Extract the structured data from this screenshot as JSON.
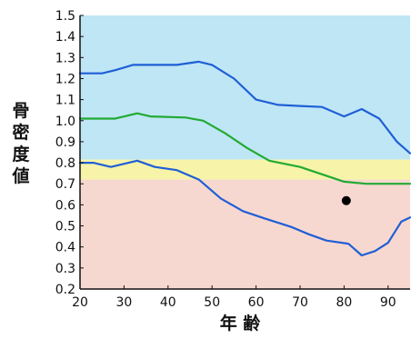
{
  "chart_data": {
    "type": "line",
    "ylabel": "骨密度値",
    "xlabel": "年 齢",
    "xlim": [
      20,
      95
    ],
    "ylim": [
      0.2,
      1.5
    ],
    "x_ticks": [
      20,
      30,
      40,
      50,
      60,
      70,
      80,
      90
    ],
    "y_ticks": [
      0.2,
      0.3,
      0.4,
      0.5,
      0.6,
      0.7,
      0.8,
      0.9,
      1.0,
      1.1,
      1.2,
      1.3,
      1.4,
      1.5
    ],
    "grid": false,
    "legend": "none",
    "bands": [
      {
        "from": 0.815,
        "to": 1.5,
        "color": "#bfe6f5"
      },
      {
        "from": 0.72,
        "to": 0.815,
        "color": "#f7f3a8"
      },
      {
        "from": 0.2,
        "to": 0.72,
        "color": "#f7d8d0"
      }
    ],
    "series": [
      {
        "color": "#1f5fd6",
        "points": [
          [
            20,
            1.225
          ],
          [
            25,
            1.225
          ],
          [
            28,
            1.24
          ],
          [
            32,
            1.265
          ],
          [
            38,
            1.265
          ],
          [
            42,
            1.265
          ],
          [
            47,
            1.28
          ],
          [
            50,
            1.265
          ],
          [
            55,
            1.2
          ],
          [
            60,
            1.1
          ],
          [
            65,
            1.075
          ],
          [
            70,
            1.07
          ],
          [
            75,
            1.065
          ],
          [
            80,
            1.02
          ],
          [
            84,
            1.055
          ],
          [
            88,
            1.01
          ],
          [
            92,
            0.9
          ],
          [
            95,
            0.845
          ]
        ]
      },
      {
        "color": "#22aa33",
        "points": [
          [
            20,
            1.01
          ],
          [
            28,
            1.01
          ],
          [
            33,
            1.035
          ],
          [
            36,
            1.02
          ],
          [
            44,
            1.015
          ],
          [
            48,
            1.0
          ],
          [
            53,
            0.94
          ],
          [
            58,
            0.87
          ],
          [
            63,
            0.81
          ],
          [
            70,
            0.78
          ],
          [
            75,
            0.745
          ],
          [
            80,
            0.71
          ],
          [
            85,
            0.7
          ],
          [
            90,
            0.7
          ],
          [
            95,
            0.7
          ]
        ]
      },
      {
        "color": "#1f5fd6",
        "points": [
          [
            20,
            0.8
          ],
          [
            23,
            0.8
          ],
          [
            27,
            0.78
          ],
          [
            33,
            0.81
          ],
          [
            37,
            0.78
          ],
          [
            42,
            0.765
          ],
          [
            47,
            0.72
          ],
          [
            52,
            0.63
          ],
          [
            57,
            0.57
          ],
          [
            62,
            0.535
          ],
          [
            68,
            0.495
          ],
          [
            72,
            0.46
          ],
          [
            76,
            0.43
          ],
          [
            81,
            0.415
          ],
          [
            84,
            0.36
          ],
          [
            87,
            0.38
          ],
          [
            90,
            0.42
          ],
          [
            93,
            0.52
          ],
          [
            95,
            0.54
          ]
        ]
      }
    ],
    "markers": [
      {
        "x": 80.5,
        "y": 0.62,
        "color": "#000000"
      }
    ],
    "colors": {
      "axis": "#111111",
      "text": "#111111"
    }
  }
}
